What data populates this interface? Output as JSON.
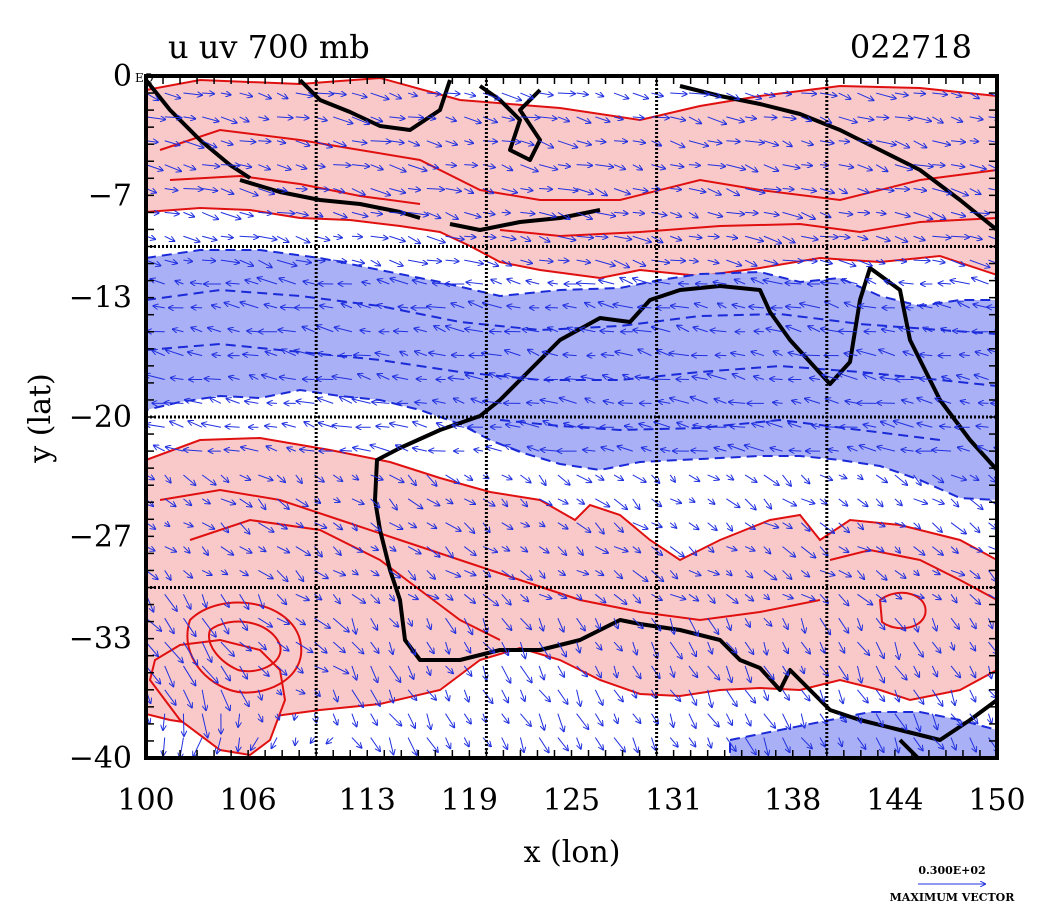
{
  "title_left": "u uv 700 mb",
  "title_right": "022718",
  "x_axis": {
    "label": "x (lon)",
    "range": [
      100,
      150
    ],
    "ticks": [
      {
        "value": 100,
        "label": "100"
      },
      {
        "value": 106,
        "label": "106"
      },
      {
        "value": 113,
        "label": "113"
      },
      {
        "value": 119,
        "label": "119"
      },
      {
        "value": 125,
        "label": "125"
      },
      {
        "value": 131,
        "label": "131"
      },
      {
        "value": 138,
        "label": "138"
      },
      {
        "value": 144,
        "label": "144"
      },
      {
        "value": 150,
        "label": "150"
      }
    ]
  },
  "y_axis": {
    "label": "y (lat)",
    "range": [
      -40,
      0
    ],
    "ticks": [
      {
        "value": 0,
        "label": "0"
      },
      {
        "value": -7,
        "label": "-7"
      },
      {
        "value": -13,
        "label": "-13"
      },
      {
        "value": -20,
        "label": "-20"
      },
      {
        "value": -27,
        "label": "-27"
      },
      {
        "value": -33,
        "label": "-33"
      },
      {
        "value": -40,
        "label": "-40"
      }
    ],
    "top_tick_suffix": "EQ"
  },
  "grid_lines": {
    "lon": [
      110,
      120,
      130,
      140
    ],
    "lat": [
      -10,
      -20,
      -30
    ]
  },
  "vector_legend": {
    "magnitude_label": "0.300E+02",
    "caption": "MAXIMUM VECTOR"
  },
  "colors": {
    "positive_fill": "#f9c9c9",
    "positive_contour": "#e01010",
    "negative_fill": "#aab0f5",
    "negative_contour": "#1a2ad8",
    "vectors": "#2030e0",
    "coastline": "#000000"
  }
}
